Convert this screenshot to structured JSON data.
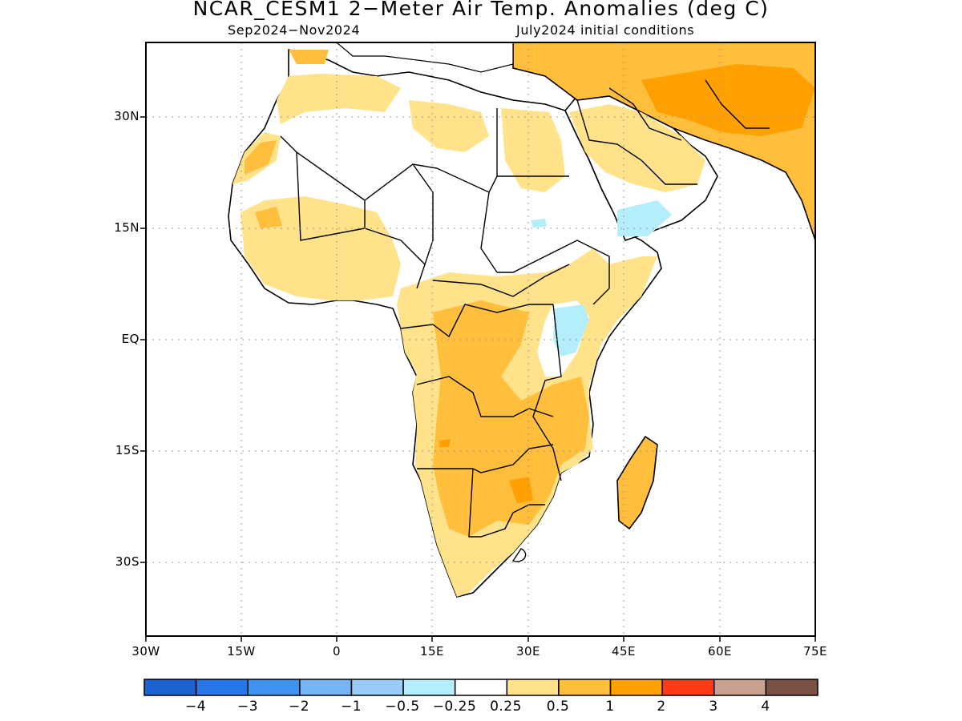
{
  "title": "NCAR_CESM1 2-Meter Air Temp. Anomalies (deg C)",
  "subtitle_left": "Sep2024-Nov2024",
  "subtitle_right": "July2024 initial conditions",
  "axes": {
    "y_ticks": [
      "30N",
      "15N",
      "EQ",
      "15S",
      "30S"
    ],
    "x_ticks": [
      "30W",
      "15W",
      "0",
      "15E",
      "30E",
      "45E",
      "60E",
      "75E"
    ],
    "lat_range": [
      -40,
      40
    ],
    "lon_range": [
      -30,
      75
    ],
    "grid": "dotted"
  },
  "colorbar": {
    "colors": [
      "#1c62d0",
      "#2676e8",
      "#3f92f0",
      "#74b4f4",
      "#99ccf8",
      "#b4eefa",
      "#ffffff",
      "#ffe28a",
      "#ffbf3c",
      "#ffa000",
      "#ff3a14",
      "#caa090",
      "#7a5244"
    ],
    "labels": [
      "-4",
      "-3",
      "-2",
      "-1",
      "-0.5",
      "-0.25",
      "0.25",
      "0.5",
      "1",
      "2",
      "3",
      "4"
    ]
  }
}
